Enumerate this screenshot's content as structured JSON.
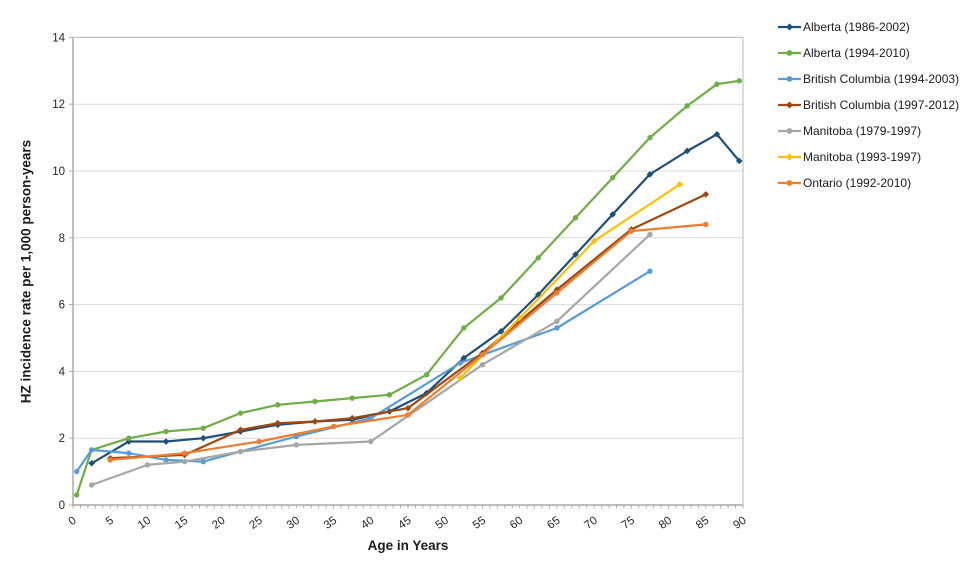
{
  "chart_data": {
    "type": "line",
    "title": "",
    "xlabel": "Age in Years",
    "ylabel": "HZ incidence rate per 1,000 person-years",
    "xlim": [
      0,
      90
    ],
    "ylim": [
      0,
      14
    ],
    "x_ticks": [
      0,
      5,
      10,
      15,
      20,
      25,
      30,
      35,
      40,
      45,
      50,
      55,
      60,
      65,
      70,
      75,
      80,
      85,
      90
    ],
    "y_ticks": [
      0,
      2,
      4,
      6,
      8,
      10,
      12,
      14
    ],
    "grid": "horizontal-on",
    "legend_position": "right",
    "colors": {
      "grid": "#d9d9d9",
      "axis": "#a6a6a6",
      "plot_border": "#c3c3c3"
    },
    "series": [
      {
        "name": "Alberta (1986-2002)",
        "color": "#1F4E79",
        "marker": "diamond",
        "points": [
          [
            2.5,
            1.25
          ],
          [
            7.5,
            1.9
          ],
          [
            12.5,
            1.9
          ],
          [
            17.5,
            2.0
          ],
          [
            22.5,
            2.2
          ],
          [
            27.5,
            2.4
          ],
          [
            32.5,
            2.5
          ],
          [
            37.5,
            2.55
          ],
          [
            42.5,
            2.8
          ],
          [
            47.5,
            3.35
          ],
          [
            52.5,
            4.4
          ],
          [
            57.5,
            5.2
          ],
          [
            62.5,
            6.3
          ],
          [
            67.5,
            7.5
          ],
          [
            72.5,
            8.7
          ],
          [
            77.5,
            9.9
          ],
          [
            82.5,
            10.6
          ],
          [
            86.5,
            11.1
          ],
          [
            89.5,
            10.3
          ]
        ]
      },
      {
        "name": "Alberta (1994-2010)",
        "color": "#70AD47",
        "marker": "circle",
        "points": [
          [
            0.5,
            0.3
          ],
          [
            2.5,
            1.65
          ],
          [
            7.5,
            2.0
          ],
          [
            12.5,
            2.2
          ],
          [
            17.5,
            2.3
          ],
          [
            22.5,
            2.75
          ],
          [
            27.5,
            3.0
          ],
          [
            32.5,
            3.1
          ],
          [
            37.5,
            3.2
          ],
          [
            42.5,
            3.3
          ],
          [
            47.5,
            3.9
          ],
          [
            52.5,
            5.3
          ],
          [
            57.5,
            6.2
          ],
          [
            62.5,
            7.4
          ],
          [
            67.5,
            8.6
          ],
          [
            72.5,
            9.8
          ],
          [
            77.5,
            11.0
          ],
          [
            82.5,
            11.95
          ],
          [
            86.5,
            12.6
          ],
          [
            89.5,
            12.7
          ]
        ]
      },
      {
        "name": "British Columbia (1994-2003)",
        "color": "#5B9BD5",
        "marker": "circle",
        "points": [
          [
            0.5,
            1.0
          ],
          [
            2.5,
            1.65
          ],
          [
            7.5,
            1.55
          ],
          [
            12.5,
            1.35
          ],
          [
            17.5,
            1.3
          ],
          [
            30,
            2.05
          ],
          [
            40,
            2.6
          ],
          [
            52,
            4.25
          ],
          [
            65,
            5.3
          ],
          [
            77.5,
            7.0
          ]
        ]
      },
      {
        "name": "British Columbia (1997-2012)",
        "color": "#9E480E",
        "marker": "diamond",
        "points": [
          [
            5,
            1.4
          ],
          [
            15,
            1.5
          ],
          [
            22.5,
            2.25
          ],
          [
            27.5,
            2.45
          ],
          [
            32.5,
            2.5
          ],
          [
            37.5,
            2.6
          ],
          [
            45,
            2.9
          ],
          [
            55,
            4.55
          ],
          [
            65,
            6.45
          ],
          [
            75,
            8.25
          ],
          [
            85,
            9.3
          ]
        ]
      },
      {
        "name": "Manitoba (1979-1997)",
        "color": "#A6A6A6",
        "marker": "circle",
        "points": [
          [
            2.5,
            0.6
          ],
          [
            10,
            1.2
          ],
          [
            15,
            1.3
          ],
          [
            22.5,
            1.6
          ],
          [
            30,
            1.8
          ],
          [
            40,
            1.9
          ],
          [
            55,
            4.2
          ],
          [
            65,
            5.5
          ],
          [
            77.5,
            8.1
          ]
        ]
      },
      {
        "name": "Manitoba (1993-1997)",
        "color": "#FFC000",
        "marker": "diamond",
        "points": [
          [
            52,
            3.8
          ],
          [
            60,
            5.6
          ],
          [
            70,
            7.9
          ],
          [
            81.5,
            9.6
          ]
        ]
      },
      {
        "name": "Ontario (1992-2010)",
        "color": "#ED7D31",
        "marker": "circle",
        "points": [
          [
            5,
            1.35
          ],
          [
            15,
            1.55
          ],
          [
            25,
            1.9
          ],
          [
            35,
            2.35
          ],
          [
            45,
            2.7
          ],
          [
            55,
            4.5
          ],
          [
            65,
            6.35
          ],
          [
            75,
            8.2
          ],
          [
            85,
            8.4
          ]
        ]
      }
    ]
  }
}
